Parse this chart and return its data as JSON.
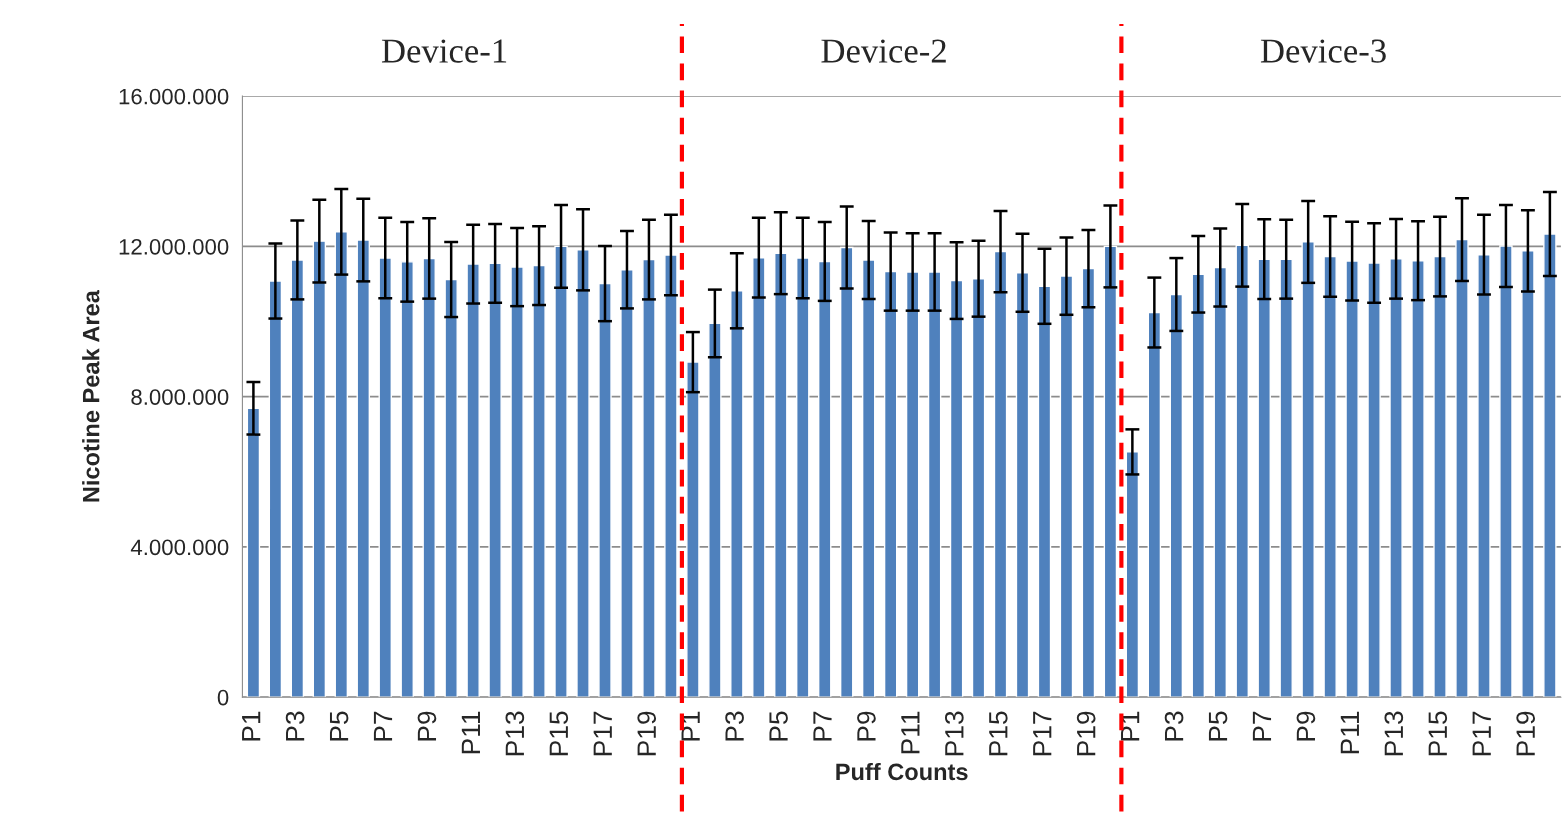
{
  "chart_data": {
    "type": "bar",
    "xlabel": "Puff Counts",
    "ylabel": "Nicotine Peak Area",
    "categories": [
      "P1",
      null,
      "P3",
      null,
      "P5",
      null,
      "P7",
      null,
      "P9",
      null,
      "P11",
      null,
      "P13",
      null,
      "P15",
      null,
      "P17",
      null,
      "P19",
      null,
      "P1",
      null,
      "P3",
      null,
      "P5",
      null,
      "P7",
      null,
      "P9",
      null,
      "P11",
      null,
      "P13",
      null,
      "P15",
      null,
      "P17",
      null,
      "P19",
      null,
      "P1",
      null,
      "P3",
      null,
      "P5",
      null,
      "P7",
      null,
      "P9",
      null,
      "P11",
      null,
      "P13",
      null,
      "P15",
      null,
      "P17",
      null,
      "P19",
      null
    ],
    "values": [
      7690000,
      11080000,
      11640000,
      12140000,
      12390000,
      12170000,
      11690000,
      11590000,
      11680000,
      11120000,
      11530000,
      11550000,
      11450000,
      11490000,
      12000000,
      11910000,
      11010000,
      11380000,
      11650000,
      11770000,
      8920000,
      9950000,
      10820000,
      11700000,
      11820000,
      11690000,
      11600000,
      11970000,
      11640000,
      11330000,
      11320000,
      11320000,
      11090000,
      11140000,
      11860000,
      11300000,
      10940000,
      11210000,
      11410000,
      12000000,
      6530000,
      10240000,
      10720000,
      11260000,
      11440000,
      12030000,
      11660000,
      11660000,
      12120000,
      11730000,
      11610000,
      11560000,
      11670000,
      11620000,
      11730000,
      12180000,
      11780000,
      12010000,
      11880000,
      12330000
    ],
    "errors": [
      700000,
      1000000,
      1050000,
      1100000,
      1140000,
      1100000,
      1070000,
      1060000,
      1070000,
      1000000,
      1050000,
      1050000,
      1040000,
      1050000,
      1100000,
      1080000,
      1000000,
      1030000,
      1060000,
      1070000,
      800000,
      900000,
      1000000,
      1060000,
      1090000,
      1070000,
      1050000,
      1090000,
      1040000,
      1040000,
      1030000,
      1030000,
      1020000,
      1010000,
      1080000,
      1040000,
      1000000,
      1030000,
      1030000,
      1090000,
      600000,
      930000,
      970000,
      1020000,
      1040000,
      1100000,
      1060000,
      1050000,
      1090000,
      1070000,
      1050000,
      1060000,
      1060000,
      1050000,
      1060000,
      1100000,
      1060000,
      1090000,
      1080000,
      1120000
    ],
    "color": "#4f81bd",
    "ylim": [
      0,
      16000000
    ],
    "yticks": [
      {
        "value": 0,
        "label": "0"
      },
      {
        "value": 4000000,
        "label": "4.000.000"
      },
      {
        "value": 8000000,
        "label": "8.000.000"
      },
      {
        "value": 12000000,
        "label": "12.000.000"
      },
      {
        "value": 16000000,
        "label": "16.000.000"
      }
    ],
    "grid": "y",
    "annotations": [
      "Device-1",
      "Device-2",
      "Device-3"
    ]
  }
}
